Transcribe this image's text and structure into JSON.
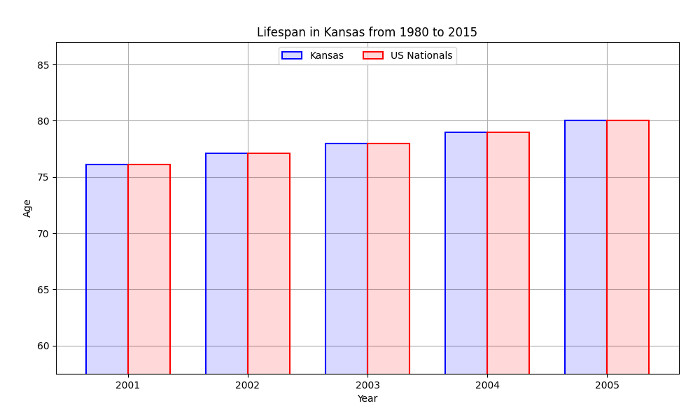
{
  "chart_data": {
    "type": "bar",
    "title": "Lifespan in Kansas from 1980 to 2015",
    "x_label": "Year",
    "y_label": "Age",
    "categories": [
      "2001",
      "2002",
      "2003",
      "2004",
      "2005"
    ],
    "series": [
      {
        "name": "Kansas",
        "color": "#0000ff",
        "values": [
          76.1,
          77.1,
          78.0,
          79.0,
          80.0
        ]
      },
      {
        "name": "US Nationals",
        "color": "#ff0000",
        "values": [
          76.1,
          77.1,
          78.0,
          79.0,
          80.0
        ]
      }
    ],
    "ylim": [
      57.5,
      87
    ],
    "yticks": [
      60,
      65,
      70,
      75,
      80,
      85
    ],
    "grid": true,
    "legend": "upper center"
  }
}
